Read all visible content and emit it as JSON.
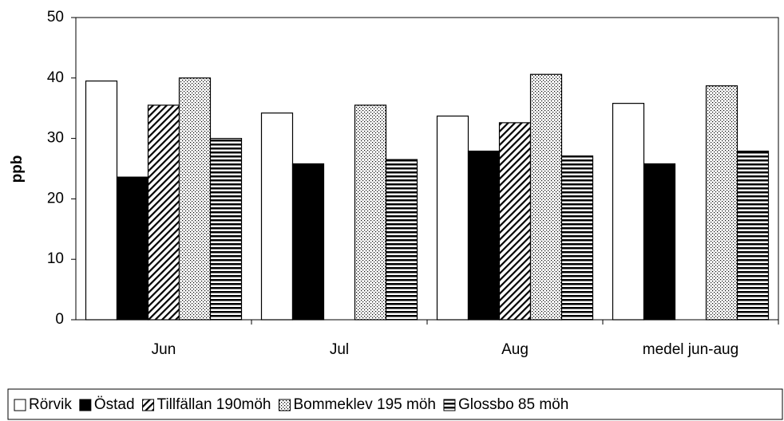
{
  "chart_data": {
    "type": "bar",
    "y_label": "ppb",
    "categories": [
      "Jun",
      "Jul",
      "Aug",
      "medel jun-aug"
    ],
    "series": [
      {
        "name": "Rörvik",
        "color": "#ffffff",
        "pattern": "solid",
        "values": [
          39.5,
          34.2,
          33.7,
          35.8
        ]
      },
      {
        "name": "Östad",
        "color": "#000000",
        "pattern": "solid",
        "values": [
          23.6,
          25.8,
          27.9,
          25.8
        ]
      },
      {
        "name": "Tillfällan 190möh",
        "color": "#000000",
        "pattern": "diagonal",
        "values": [
          35.5,
          null,
          32.6,
          null
        ]
      },
      {
        "name": "Bommeklev 195 möh",
        "color": "#000000",
        "pattern": "dots",
        "values": [
          40,
          35.5,
          40.6,
          38.7
        ]
      },
      {
        "name": "Glossbo 85 möh",
        "color": "#000000",
        "pattern": "horizontal",
        "values": [
          30,
          26.5,
          27.1,
          27.9
        ]
      }
    ],
    "ylim": [
      0,
      50
    ],
    "yticks": [
      0,
      10,
      20,
      30,
      40,
      50
    ],
    "grid": false,
    "legend": "bottom"
  }
}
